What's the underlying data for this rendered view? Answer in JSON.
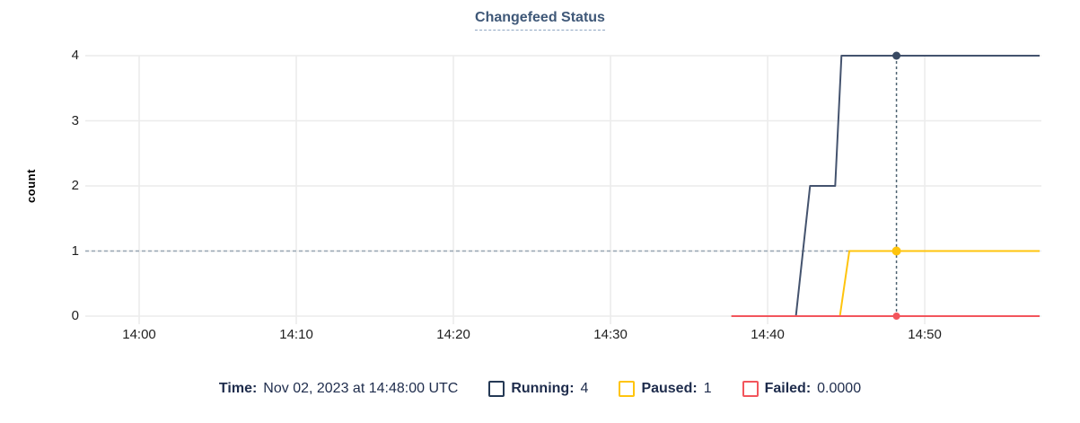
{
  "title": {
    "text": "Changefeed Status"
  },
  "colors": {
    "running_line": "#44536e",
    "running_swatch": "#253955",
    "running_dot": "#394a63",
    "paused": "#ffc40d",
    "failed": "#f2555c",
    "gridline": "#ececec",
    "hover_vline": "#4f6372",
    "hover_hline": "#97a5b2",
    "legend_text": "#1e2c4c",
    "title_text": "#3f5878"
  },
  "tooltip": {
    "time_label": "Time:",
    "time_value": "Nov 02, 2023 at 14:48:00 UTC"
  },
  "legend": [
    {
      "name": "Running:",
      "value": "4",
      "swatch_color": "#253955"
    },
    {
      "name": "Paused:",
      "value": "1",
      "swatch_color": "#ffc40d"
    },
    {
      "name": "Failed:",
      "value": "0.0000",
      "swatch_color": "#f2555c"
    }
  ],
  "chart_data": {
    "type": "line",
    "title": "Changefeed Status",
    "xlabel": "",
    "ylabel": "count",
    "ylim": [
      0,
      4
    ],
    "xlim_minutes_after_1400": [
      -3.43,
      57.31
    ],
    "grid": true,
    "legend_position": "bottom",
    "x_unit": "minutes after 14:00, Nov 02 2023 UTC",
    "y_ticks": [
      0,
      1,
      2,
      3,
      4
    ],
    "x_ticks": [
      {
        "x": 0,
        "label": "14:00"
      },
      {
        "x": 10,
        "label": "14:10"
      },
      {
        "x": 20,
        "label": "14:20"
      },
      {
        "x": 30,
        "label": "14:30"
      },
      {
        "x": 40,
        "label": "14:40"
      },
      {
        "x": 50,
        "label": "14:50"
      }
    ],
    "series": [
      {
        "name": "Running",
        "color": "#44536e",
        "width": 2,
        "points": [
          [
            37.7,
            0
          ],
          [
            41.8,
            0
          ],
          [
            42.7,
            2
          ],
          [
            44.3,
            2
          ],
          [
            44.7,
            4
          ],
          [
            57.31,
            4
          ]
        ]
      },
      {
        "name": "Paused",
        "color": "#ffc40d",
        "width": 2,
        "points": [
          [
            37.7,
            0
          ],
          [
            44.6,
            0
          ],
          [
            45.2,
            1
          ],
          [
            57.31,
            1
          ]
        ]
      },
      {
        "name": "Failed",
        "color": "#f2555c",
        "width": 2,
        "points": [
          [
            37.7,
            0
          ],
          [
            57.31,
            0
          ]
        ]
      }
    ],
    "hover_crosshair": {
      "x": 48.2,
      "time_text": "Nov 02, 2023 at 14:48:00 UTC",
      "markers": [
        {
          "series": "Running",
          "y": 4,
          "color": "#394a63",
          "r": 4.5
        },
        {
          "series": "Paused",
          "y": 1,
          "color": "#ffc40d",
          "r": 5
        },
        {
          "series": "Failed",
          "y": 0,
          "color": "#f2555c",
          "r": 4
        }
      ]
    },
    "dashed_hline_y": 1
  }
}
